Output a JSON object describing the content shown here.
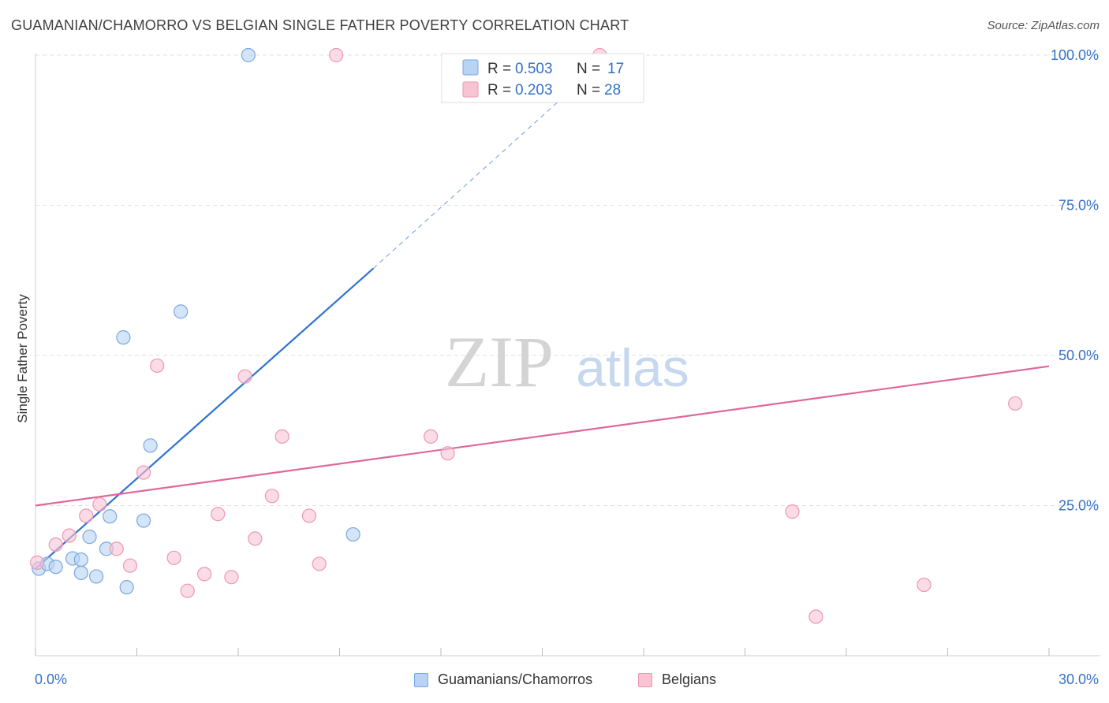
{
  "header": {
    "title": "GUAMANIAN/CHAMORRO VS BELGIAN SINGLE FATHER POVERTY CORRELATION CHART",
    "source": "Source: ZipAtlas.com"
  },
  "watermark": {
    "zip": "ZIP",
    "atlas": "atlas"
  },
  "legend_top": {
    "rows": [
      {
        "r_label": "R = ",
        "r_value": "0.503",
        "n_label": "N = ",
        "n_value": "17"
      },
      {
        "r_label": "R = ",
        "r_value": "0.203",
        "n_label": "N = ",
        "n_value": "28"
      }
    ]
  },
  "legend_bottom": {
    "items": [
      {
        "label": "Guamanians/Chamorros"
      },
      {
        "label": "Belgians"
      }
    ]
  },
  "colors": {
    "blue_fill": "#b8d3f4",
    "blue_stroke": "#7aa7e0",
    "blue_line": "#2f73d0",
    "pink_fill": "#f8c3d3",
    "pink_stroke": "#ee97b3",
    "pink_line": "#e0679a",
    "value_text": "#3572c6",
    "grid": "#e2e2e2"
  },
  "chart_data": {
    "type": "scatter",
    "title": "GUAMANIAN/CHAMORRO VS BELGIAN SINGLE FATHER POVERTY CORRELATION CHART",
    "xlabel": "",
    "ylabel": "Single Father Poverty",
    "xlim": [
      0,
      30
    ],
    "ylim": [
      0,
      103
    ],
    "x_tick_labels": [
      "0.0%",
      "30.0%"
    ],
    "y_ticks": [
      25,
      50,
      75,
      100
    ],
    "y_tick_labels": [
      "25.0%",
      "50.0%",
      "75.0%",
      "100.0%"
    ],
    "grid": true,
    "legend_placement": "top-center",
    "series": [
      {
        "name": "Guamanians/Chamorros",
        "r": 0.503,
        "n": 17,
        "points": [
          {
            "x": 0.1,
            "y": 14.5
          },
          {
            "x": 0.35,
            "y": 15.3
          },
          {
            "x": 0.6,
            "y": 14.8
          },
          {
            "x": 1.1,
            "y": 16.2
          },
          {
            "x": 1.35,
            "y": 16.0
          },
          {
            "x": 1.35,
            "y": 13.8
          },
          {
            "x": 1.6,
            "y": 19.8
          },
          {
            "x": 1.8,
            "y": 13.2
          },
          {
            "x": 2.1,
            "y": 17.8
          },
          {
            "x": 2.2,
            "y": 23.2
          },
          {
            "x": 2.6,
            "y": 53.0
          },
          {
            "x": 2.7,
            "y": 11.4
          },
          {
            "x": 3.2,
            "y": 22.5
          },
          {
            "x": 3.4,
            "y": 35.0
          },
          {
            "x": 4.3,
            "y": 57.3
          },
          {
            "x": 6.3,
            "y": 100.0
          },
          {
            "x": 9.4,
            "y": 20.2
          }
        ],
        "trend": {
          "x0": 0.0,
          "y0": 14.5,
          "x1": 10.0,
          "y1": 64.5,
          "dashed_to_x": 16.7,
          "dashed_to_y": 98.5
        }
      },
      {
        "name": "Belgians",
        "r": 0.203,
        "n": 28,
        "points": [
          {
            "x": 0.05,
            "y": 15.5
          },
          {
            "x": 0.6,
            "y": 18.5
          },
          {
            "x": 1.0,
            "y": 20.0
          },
          {
            "x": 1.5,
            "y": 23.3
          },
          {
            "x": 1.9,
            "y": 25.2
          },
          {
            "x": 2.4,
            "y": 17.8
          },
          {
            "x": 2.8,
            "y": 15.0
          },
          {
            "x": 3.2,
            "y": 30.5
          },
          {
            "x": 3.6,
            "y": 48.3
          },
          {
            "x": 4.1,
            "y": 16.3
          },
          {
            "x": 4.5,
            "y": 10.8
          },
          {
            "x": 5.0,
            "y": 13.6
          },
          {
            "x": 5.4,
            "y": 23.6
          },
          {
            "x": 5.8,
            "y": 13.1
          },
          {
            "x": 6.2,
            "y": 46.5
          },
          {
            "x": 6.5,
            "y": 19.5
          },
          {
            "x": 7.0,
            "y": 26.6
          },
          {
            "x": 7.3,
            "y": 36.5
          },
          {
            "x": 8.1,
            "y": 23.3
          },
          {
            "x": 8.4,
            "y": 15.3
          },
          {
            "x": 8.9,
            "y": 100.0
          },
          {
            "x": 11.7,
            "y": 36.5
          },
          {
            "x": 12.2,
            "y": 33.7
          },
          {
            "x": 16.7,
            "y": 100.0
          },
          {
            "x": 22.4,
            "y": 24.0
          },
          {
            "x": 23.1,
            "y": 6.5
          },
          {
            "x": 26.3,
            "y": 11.8
          },
          {
            "x": 29.0,
            "y": 42.0
          }
        ],
        "trend": {
          "x0": 0.0,
          "y0": 25.0,
          "x1": 30.0,
          "y1": 48.2
        }
      }
    ]
  }
}
